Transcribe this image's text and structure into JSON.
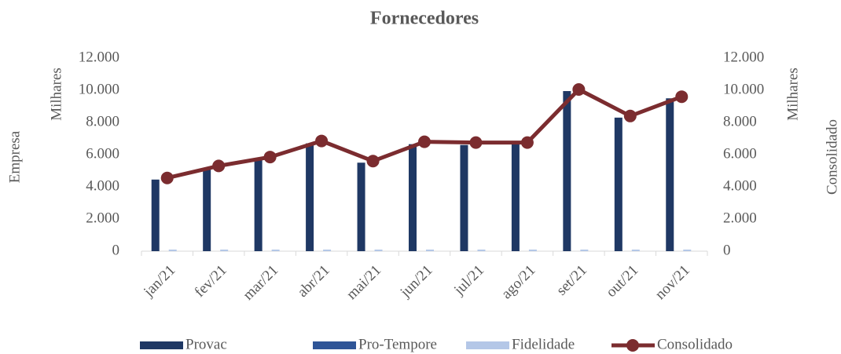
{
  "chart_data": {
    "type": "bar-line",
    "title": "Fornecedores",
    "y_label": "Empresa",
    "y_unit": "Milhares",
    "y2_label": "Consolidado",
    "y2_unit": "Milhares",
    "categories": [
      "jan/21",
      "fev/21",
      "mar/21",
      "abr/21",
      "mai/21",
      "jun/21",
      "jul/21",
      "ago/21",
      "set/21",
      "out/21",
      "nov/21"
    ],
    "series": [
      {
        "name": "Provac",
        "type": "bar",
        "color": "#1f3864",
        "values": [
          4450,
          5150,
          5800,
          6700,
          5500,
          6650,
          6600,
          6700,
          9950,
          8300,
          9500
        ]
      },
      {
        "name": "Pro-Tempore",
        "type": "bar",
        "color": "#2f5597",
        "values": [
          0,
          0,
          0,
          0,
          0,
          0,
          0,
          0,
          0,
          0,
          0
        ]
      },
      {
        "name": "Fidelidade",
        "type": "bar",
        "color": "#b4c7e7",
        "values": [
          100,
          100,
          100,
          100,
          100,
          100,
          100,
          100,
          100,
          100,
          100
        ]
      },
      {
        "name": "Consolidado",
        "type": "line",
        "axis": "y2",
        "color": "#7b2c2f",
        "values": [
          4550,
          5300,
          5850,
          6850,
          5600,
          6800,
          6750,
          6750,
          10050,
          8400,
          9600
        ]
      }
    ],
    "ylim": [
      0,
      12000
    ],
    "yticks": [
      0,
      {
        "value": 2000,
        "label": "2.000"
      },
      {
        "value": 4000,
        "label": "4.000"
      },
      {
        "value": 6000,
        "label": "6.000"
      },
      {
        "value": 8000,
        "label": "8.000"
      },
      {
        "value": 10000,
        "label": "10.000"
      },
      {
        "value": 12000,
        "label": "12.000"
      }
    ],
    "y2lim": [
      0,
      12000
    ],
    "y2ticks": [
      0,
      {
        "value": 2000,
        "label": "2.000"
      },
      {
        "value": 4000,
        "label": "4.000"
      },
      {
        "value": 6000,
        "label": "6.000"
      },
      {
        "value": 8000,
        "label": "8.000"
      },
      {
        "value": 10000,
        "label": "10.000"
      },
      {
        "value": 12000,
        "label": "12.000"
      }
    ],
    "legend": "bottom",
    "grid": false
  }
}
